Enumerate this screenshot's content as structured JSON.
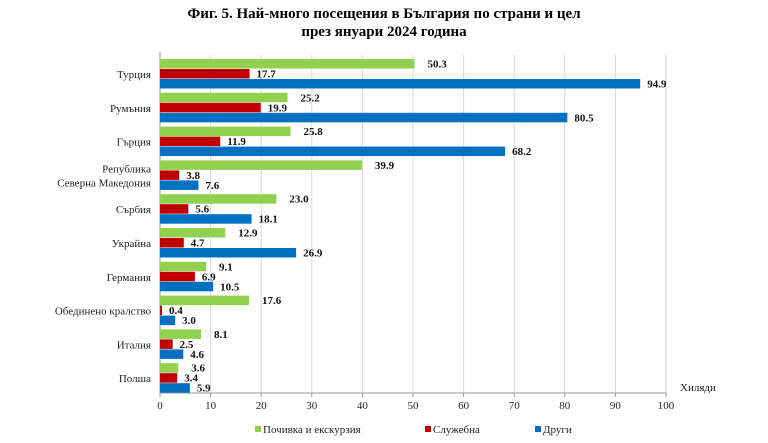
{
  "chart_data": {
    "type": "bar",
    "orientation": "horizontal",
    "title": "Фиг. 5. Най-много посещения в България по страни и цел",
    "subtitle": "през януари 2024 година",
    "xlabel": "Хиляди",
    "xlim": [
      0,
      100
    ],
    "xticks": [
      "0",
      "10",
      "20",
      "30",
      "40",
      "50",
      "60",
      "70",
      "80",
      "90",
      "100"
    ],
    "grid": true,
    "legend_position": "bottom",
    "categories": [
      [
        "Турция"
      ],
      [
        "Румъния"
      ],
      [
        "Гърция"
      ],
      [
        "Република",
        "Северна Македония"
      ],
      [
        "Сърбия"
      ],
      [
        "Украйна"
      ],
      [
        "Германия"
      ],
      [
        "Обединено кралство"
      ],
      [
        "Италия"
      ],
      [
        "Полша"
      ]
    ],
    "series": [
      {
        "name": "Почивка и екскурзия",
        "color": "#92d050",
        "values": [
          50.3,
          25.2,
          25.8,
          39.9,
          23.0,
          12.9,
          9.1,
          17.6,
          8.1,
          3.6
        ]
      },
      {
        "name": "Служебна",
        "color": "#c00000",
        "values": [
          17.7,
          19.9,
          11.9,
          3.8,
          5.6,
          4.7,
          6.9,
          0.4,
          2.5,
          3.4
        ]
      },
      {
        "name": "Други",
        "color": "#0070c0",
        "values": [
          94.9,
          80.5,
          68.2,
          7.6,
          18.1,
          26.9,
          10.5,
          3.0,
          4.6,
          5.9
        ]
      }
    ]
  }
}
